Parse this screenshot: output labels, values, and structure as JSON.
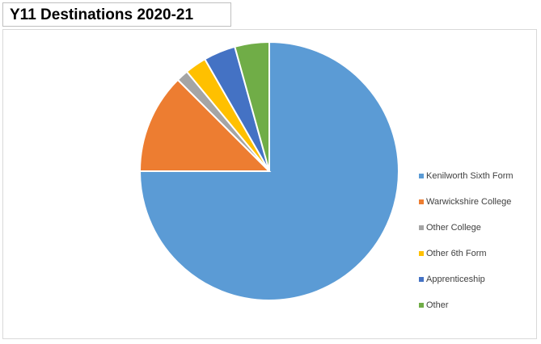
{
  "chart_data": {
    "type": "pie",
    "title": "Y11 Destinations 2020-21",
    "categories": [
      "Kenilworth Sixth Form",
      "Warwickshire College",
      "Other College",
      "Other 6th Form",
      "Apprenticeship",
      "Other"
    ],
    "values": [
      75,
      12.5,
      1.5,
      2.7,
      4,
      4.3
    ],
    "colors": [
      "#5b9bd5",
      "#ed7d31",
      "#a5a5a5",
      "#ffc000",
      "#4472c4",
      "#70ad47"
    ],
    "legend": "right"
  }
}
